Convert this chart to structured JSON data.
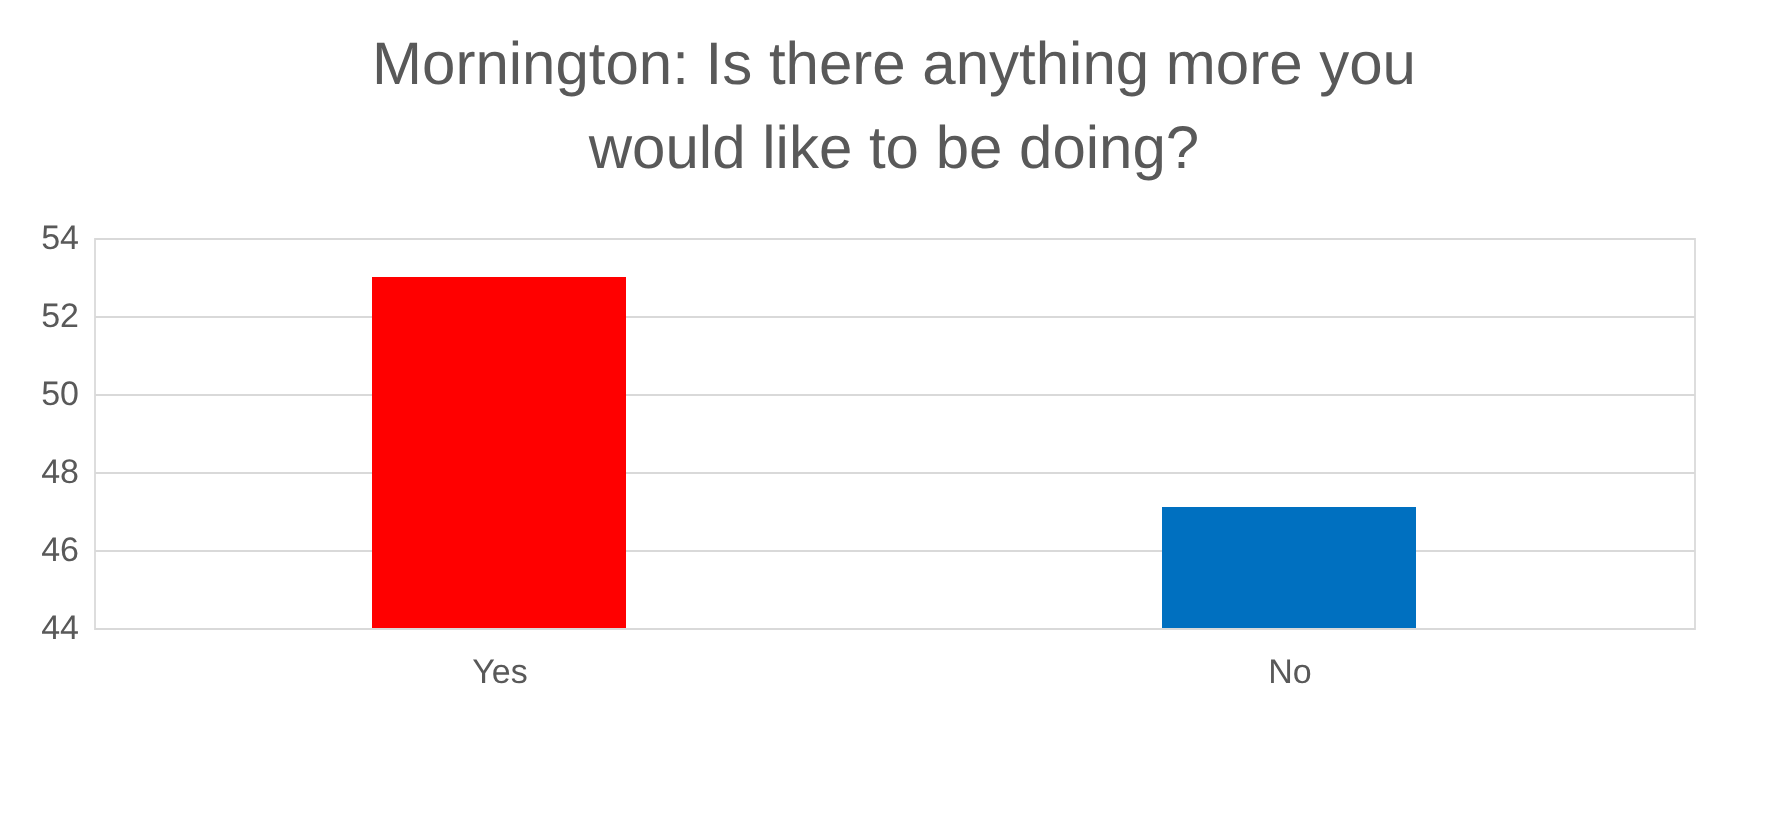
{
  "chart_data": {
    "type": "bar",
    "title": "Mornington: Is there anything more you would like to be doing?",
    "categories": [
      "Yes",
      "No"
    ],
    "values": [
      53,
      47.1
    ],
    "colors": [
      "#ff0000",
      "#0070c0"
    ],
    "ylim": [
      44,
      54
    ],
    "yticks": [
      44,
      46,
      48,
      50,
      52,
      54
    ],
    "grid": "y",
    "legend": false
  }
}
